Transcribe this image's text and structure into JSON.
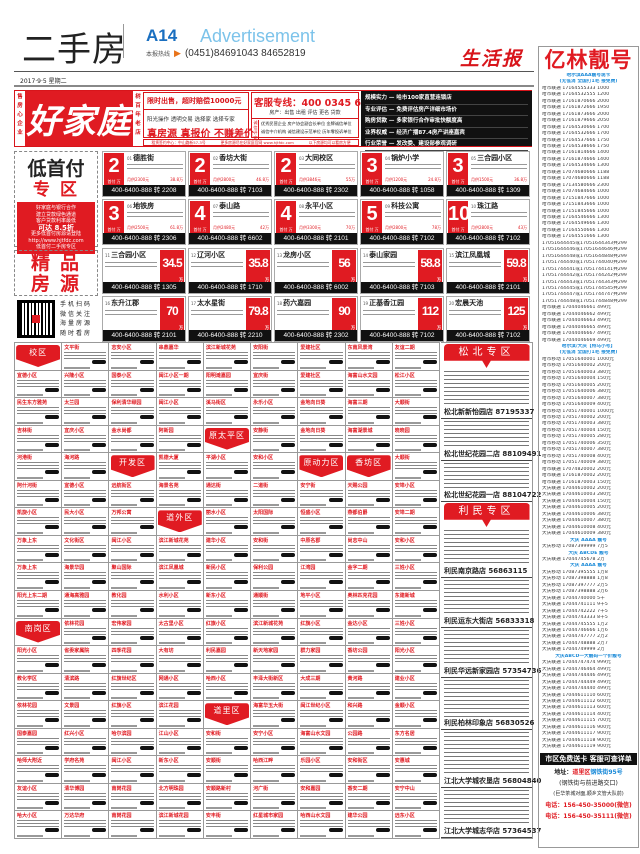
{
  "header": {
    "section_title": "二手房",
    "page_number": "A14",
    "page_label": "Advertisement",
    "hotline_label": "本报热线",
    "hotline": "(0451)84691043  84652819",
    "newspaper_logo": "生活报",
    "date": "2017·9·5  星期二"
  },
  "ad": {
    "left_vertical": "售房心企业",
    "brand": "好家庭",
    "right_vertical": "树百年老店",
    "promise": "限时出售，超时赔偿10000元",
    "principles": "阳光操作  透明交易  选择家  选择专家",
    "slogan": "真房源 真报价 不赚差价",
    "service_line": "客服专线：400 0345 688",
    "services": "房产：出售  出租  评估  更名  贷款",
    "honor_label": "诚信评定",
    "honors1": "优秀民营企业  房产协会副会长单位  金牌诚信单位",
    "honors2": "诚信中介机构  诚信建设示范单位  历年零投诉单位",
    "features": [
      "规模实力 — 哈市100家直营连锁店",
      "专业评估 — 免费评估房产详细市场价",
      "购房贷款 — 多家银行合作审批快额度高",
      "业界权威 — 经济广播87.4房产讲座嘉宾",
      "行业荣誉 — 发改委、建设部参观调研"
    ],
    "strip": [
      "租赁签约中心：中山路新57-3号",
      "更多房源尽在好家庭官网 www.hjtfdc.com",
      "以下房源均可以看房方便"
    ]
  },
  "low_pay": {
    "title": "低首付",
    "subtitle": "专区",
    "lines": [
      "好家庭与银行合作",
      "建立贷款绿色通道",
      "客户贷款利率最低"
    ],
    "discount": "可达 8.5折",
    "more": [
      "更多低首付房源请登陆",
      "http://www.hjtfdc.com",
      "低首付二手房专区"
    ],
    "down_label": "首付",
    "unit": "万",
    "cards": [
      {
        "no": "01",
        "name": "德胜街",
        "down": "2",
        "monthly": "月供2300元",
        "total": "38.8万",
        "tel": "400-6400-888 转 2208"
      },
      {
        "no": "02",
        "name": "香坊大街",
        "down": "2",
        "monthly": "月供2800元",
        "total": "46.8万",
        "tel": "400-6400-888 转 7103"
      },
      {
        "no": "03",
        "name": "大同校区",
        "down": "2",
        "monthly": "月供3846元",
        "total": "55万",
        "tel": "400-6400-888 转 2302"
      },
      {
        "no": "04",
        "name": "锅炉小学",
        "down": "3",
        "monthly": "月供1200元",
        "total": "24.8万",
        "tel": "400-6400-888 转 1058"
      },
      {
        "no": "05",
        "name": "三合园小区",
        "down": "3",
        "monthly": "月供1500元",
        "total": "36.8万",
        "tel": "400-6400-888 转 1309"
      },
      {
        "no": "06",
        "name": "地铁房",
        "down": "3",
        "monthly": "月供2500元",
        "total": "61.8万",
        "tel": "400-6400-888 转 2306"
      },
      {
        "no": "07",
        "name": "泰山路",
        "down": "4",
        "monthly": "月供2480元",
        "total": "42万",
        "tel": "400-6400-888 转 6602"
      },
      {
        "no": "08",
        "name": "永平小区",
        "down": "4",
        "monthly": "月供3300元",
        "total": "70万",
        "tel": "400-6400-888 转 2101"
      },
      {
        "no": "09",
        "name": "科技公寓",
        "down": "5",
        "monthly": "月供2800元",
        "total": "78万",
        "tel": "400-6400-888 转 7102"
      },
      {
        "no": "10",
        "name": "珠江路",
        "down": "10",
        "monthly": "月供2800元",
        "total": "43万",
        "tel": "400-6400-888 转 7102"
      }
    ]
  },
  "premium": {
    "title": "精品房源",
    "qr_text": "手机扫码 微信关注 海量房源 随时看房",
    "unit": "万",
    "cards": [
      {
        "no": "11",
        "name": "三合园小区",
        "price": "34.5",
        "tel": "400-6400-888 转 1305"
      },
      {
        "no": "12",
        "name": "辽河小区",
        "price": "35.8",
        "tel": "400-6400-888 转 1710"
      },
      {
        "no": "13",
        "name": "龙房小区",
        "price": "56",
        "tel": "400-6400-888 转 6002"
      },
      {
        "no": "14",
        "name": "泰山家园",
        "price": "58.8",
        "tel": "400-6400-888 转 7103"
      },
      {
        "no": "15",
        "name": "滨江凤凰城",
        "price": "59.8",
        "tel": "400-6400-888 转 2101"
      },
      {
        "no": "16",
        "name": "东升江郡",
        "price": "70",
        "tel": "400-6400-888 转 2101"
      },
      {
        "no": "17",
        "name": "太水星街",
        "price": "79.8",
        "tel": "400-6400-888 转 2210"
      },
      {
        "no": "18",
        "name": "药六嘉园",
        "price": "90",
        "tel": "400-6400-888 转 2302"
      },
      {
        "no": "19",
        "name": "正基香江园",
        "price": "112",
        "tel": "400-6400-888 转 7102"
      },
      {
        "no": "20",
        "name": "宏晨天池",
        "price": "125",
        "tel": "400-6400-888 转 7102"
      }
    ]
  },
  "districts": [
    "校区",
    "原太平区",
    "开发区",
    "原动力区",
    "香坊区",
    "道外区",
    "南岗区",
    "道里区"
  ],
  "listings": [
    "文平街",
    "志安小区",
    "串鼎嘉华",
    "滨江新城花苑",
    "安阳街",
    "爱建社区",
    "东南风景湾",
    "友谊二期",
    "宣德小区",
    "兴隆小区",
    "国泰小区",
    "闽江小区一期",
    "阳明滩嘉园",
    "宣庆街",
    "爱建社区",
    "海富山水文园",
    "松江小区",
    "民生东方雅苑",
    "太兰园",
    "保利清华颐园",
    "闽江小区",
    "溪马街区",
    "永乐小区",
    "金地向日葵",
    "海富三期",
    "大顺街",
    "吉林街",
    "宜庆小区",
    "金水尚都",
    "阿新园",
    "安静街",
    "金地向日葵",
    "海富湖景城",
    "晓晓园",
    "河港街",
    "海河路",
    "凯德大厦",
    "平湖小区",
    "安和小区",
    "大顺街",
    "阿什河街",
    "宣德小区",
    "远航街区",
    "海景名苑",
    "通达街",
    "二道街",
    "安宁街",
    "天赐公园",
    "安埠小区",
    "凯旋小区",
    "民大小区",
    "万邦公寓",
    "丽水小区",
    "太阳国际",
    "恒盛小区",
    "燕都伯爵",
    "安埠二期",
    "万象上东",
    "文化街区",
    "闽江小区",
    "滨江新城花苑",
    "建华小区",
    "安和街",
    "中原名郡",
    "尚志中山",
    "安和小区",
    "万象上东",
    "海景华园",
    "聚山国际",
    "滨江凤凰城",
    "新民小区",
    "保利公园",
    "江湾园",
    "金字二期",
    "三姓小区",
    "阳光上东二期",
    "通海高雅园",
    "教化园",
    "水利小区",
    "新东小区",
    "通顺街",
    "地平小区",
    "奥林匹克花园",
    "东建新城",
    "依林花园",
    "宏伟家园",
    "太古里小区",
    "红旗小区",
    "滨江新城花苑",
    "红旗小区",
    "金达小区",
    "三姓小区",
    "阳光小区",
    "省委家属院",
    "四季花园",
    "大有坊",
    "利民嘉园",
    "新天地家园",
    "群力家园",
    "香坊公园",
    "阳光小区",
    "教化学区",
    "清滨路",
    "红旗世纪区",
    "网通小区",
    "哈西小区",
    "丰泽大街新区",
    "大成三期",
    "黄河路",
    "建业小区",
    "依林花园",
    "文景园",
    "红旗小区",
    "滨江花园",
    "海富华玉大街",
    "闽江世纪小区",
    "和兴路",
    "金顺小区",
    "国泰嘉园",
    "红兴小区",
    "哈尔滨园",
    "江山小区",
    "安和街",
    "安宁小区",
    "海富山水文园",
    "公园路",
    "东方名居",
    "哈师大附近",
    "学府名苑",
    "闽江小区",
    "新东小区",
    "安顺街",
    "哈西江畔",
    "乐园小区",
    "安和街区",
    "安惠城",
    "友谊小区",
    "清华博园",
    "南岗花园",
    "北方明珠园",
    "安顺路新村",
    "河广街",
    "安和嘉园",
    "香安二期",
    "安宁中山",
    "哈大小区",
    "万达华府",
    "南岗花园",
    "滨江新城花园",
    "安丰街",
    "红星城市家园",
    "哈西山水文园",
    "建华公园",
    "远东小区"
  ],
  "right_panel": {
    "zones": [
      {
        "title": "松北专区",
        "stores": [
          "松北新新怡园店 87195337",
          "松北世纪花园二店 88109491",
          "松北世纪花园一店 88104722"
        ]
      },
      {
        "title": "利民专区",
        "stores": [
          "利民南京路店 56863115",
          "利民运东大街店 56833318",
          "利民华远新家园店 57354736",
          "利民柏林印象店 56830526",
          "江北大学城农垦店 56804840",
          "江北大学城志华店 57364537"
        ]
      }
    ]
  },
  "numbers": {
    "title": "亿林靓号",
    "lines": [
      [
        "b",
        "哈尔滨AAA靓号现卡"
      ],
      [
        "b",
        "(无低消 全国打1毛 接免费)"
      ],
      [
        "",
        "哈市联通 17164555333 1000"
      ],
      [
        "",
        "哈市联通 17164532555 1200"
      ],
      [
        "",
        "哈市联通 17161870666 2000"
      ],
      [
        "",
        "哈市联通 17161872666 1950"
      ],
      [
        "",
        "哈市联通 17161873666 2000"
      ],
      [
        "",
        "哈市联通 17161879666 2050"
      ],
      [
        "",
        "哈市联通 17164530666 1700"
      ],
      [
        "",
        "哈市联通 17164532666 1700"
      ],
      [
        "",
        "哈市联通 17164537666 1750"
      ],
      [
        "",
        "哈市联通 17164538666 1750"
      ],
      [
        "",
        "哈市联通 17161814666 1400"
      ],
      [
        "",
        "哈市联通 17161874666 1400"
      ],
      [
        "",
        "哈市联通 17164534666 1300"
      ],
      [
        "",
        "哈市联通 17074680666 1188"
      ],
      [
        "",
        "哈市联通 17074680666 1188"
      ],
      [
        "",
        "哈市联通 17134580666 2300"
      ],
      [
        "",
        "哈市联通 17074684666 1000"
      ],
      [
        "",
        "哈市联通 17151847666 1000"
      ],
      [
        "",
        "哈市联通 17151843666 1000"
      ],
      [
        "",
        "哈市联通 17151845666 1000"
      ],
      [
        "",
        "哈市联通 17164546666 1300"
      ],
      [
        "",
        "哈市联通 17164549666 1300"
      ],
      [
        "",
        "哈市联通 17164550666 1300"
      ],
      [
        "",
        "哈市联通 17164551666 1300"
      ],
      [
        "",
        "17051644445或17051644343共299"
      ],
      [
        "",
        "17051644446或17051644646共299"
      ],
      [
        "",
        "17051644448或17051644848共299"
      ],
      [
        "",
        "17051744440或17051744040共299"
      ],
      [
        "",
        "17051744441或17051744141共299"
      ],
      [
        "",
        "17051744442或17051744242共299"
      ],
      [
        "",
        "17051744443或17051744343共299"
      ],
      [
        "",
        "17051744445或17051744545共299"
      ],
      [
        "",
        "17051744447或17051744747共299"
      ],
      [
        "",
        "17051744448或17051744848共299"
      ],
      [
        "",
        "哈市联通 17044046661 499元"
      ],
      [
        "",
        "哈市联通 17044046662 499元"
      ],
      [
        "",
        "哈市联通 17044046663 499元"
      ],
      [
        "",
        "哈市联通 17044046665 499元"
      ],
      [
        "",
        "哈市联通 17044046667 499元"
      ],
      [
        "",
        "哈市联通 17044046669 499元"
      ],
      [
        "b",
        "哈尔滨/大庆【特马小号】"
      ],
      [
        "b",
        "(无低消 全国打1毛 接免费)"
      ],
      [
        "",
        "哈市移动 17051640001 1000元"
      ],
      [
        "",
        "哈市移动 17051640002 200元"
      ],
      [
        "",
        "哈市移动 17051640003 380元"
      ],
      [
        "",
        "哈市移动 17051640004 150元"
      ],
      [
        "",
        "哈市移动 17051640005 200元"
      ],
      [
        "",
        "哈市移动 17051640006 380元"
      ],
      [
        "",
        "哈市移动 17051640007 380元"
      ],
      [
        "",
        "哈市移动 17051640009 400元"
      ],
      [
        "",
        "哈市移动 17051740001 1000元"
      ],
      [
        "",
        "哈市移动 17051740002 200元"
      ],
      [
        "",
        "哈市移动 17051740003 380元"
      ],
      [
        "",
        "哈市移动 17051740004 150元"
      ],
      [
        "",
        "哈市移动 17051740005 280元"
      ],
      [
        "",
        "哈市移动 17051740006 350元"
      ],
      [
        "",
        "哈市移动 17051740007 380元"
      ],
      [
        "",
        "哈市移动 17051740008 400元"
      ],
      [
        "",
        "哈市移动 17051740009 380元"
      ],
      [
        "",
        "哈市联通 17074820002 200元"
      ],
      [
        "",
        "哈市联通 17161870002 200元"
      ],
      [
        "",
        "哈市联通 17161870003 150元"
      ],
      [
        "",
        "大庆联通 17044610002 200元"
      ],
      [
        "",
        "大庆联通 17044610003 280元"
      ],
      [
        "",
        "大庆联通 17044610004 150元"
      ],
      [
        "",
        "大庆联通 17044610005 200元"
      ],
      [
        "",
        "大庆联通 17044610006 380元"
      ],
      [
        "",
        "大庆联通 17044610007 380元"
      ],
      [
        "",
        "大庆联通 17044610008 400元"
      ],
      [
        "",
        "大庆联通 17044610009 380元"
      ],
      [
        "b",
        "大庆 AAAA 靓号"
      ],
      [
        "",
        "大庆移动 17087399999 7万5"
      ],
      [
        "b",
        "大庆 ABCDE 靓号"
      ],
      [
        "",
        "大庆联通 17044745678 2万"
      ],
      [
        "b",
        "大庆 AAAA 靓号"
      ],
      [
        "",
        "大庆移动 17087395555 1万8"
      ],
      [
        "",
        "大庆移动 17087398888 1万8"
      ],
      [
        "",
        "大庆移动 17087397777 2万5"
      ],
      [
        "",
        "大庆移动 17087398888 2万6"
      ],
      [
        "",
        "大庆联通 17044740000 5千"
      ],
      [
        "",
        "大庆联通 17044741111 9千5"
      ],
      [
        "",
        "大庆联通 17044742222 7千5"
      ],
      [
        "",
        "大庆联通 17044743333 8千5"
      ],
      [
        "",
        "大庆联通 17044745555 1万2"
      ],
      [
        "",
        "大庆联通 17044746666 1万6"
      ],
      [
        "",
        "大庆联通 17044747777 2万2"
      ],
      [
        "",
        "大庆联通 17044748888 2万7"
      ],
      [
        "",
        "大庆联通 17044749999 2万"
      ],
      [
        "b",
        "大庆ABCD一大靓码一个价靓号"
      ],
      [
        "",
        "大庆联通 17044747474 999元"
      ],
      [
        "",
        "大庆联通 17044746464 499元"
      ],
      [
        "",
        "大庆联通 17044744446 499元"
      ],
      [
        "",
        "大庆联通 17044744449 499元"
      ],
      [
        "",
        "大庆联通 17044744440 499元"
      ],
      [
        "",
        "大庆联通 17044611110 600元"
      ],
      [
        "",
        "大庆联通 17044611112 600元"
      ],
      [
        "",
        "大庆联通 17044611113 600元"
      ],
      [
        "",
        "大庆联通 17044611114 400元"
      ],
      [
        "",
        "大庆联通 17044611115 700元"
      ],
      [
        "",
        "大庆联通 17044611116 900元"
      ],
      [
        "",
        "大庆联通 17044611117 900元"
      ],
      [
        "",
        "大庆联通 17044611118 900元"
      ],
      [
        "",
        "大庆联通 17044611119 900元"
      ]
    ],
    "banner": "市区免费送卡 客服可查详单",
    "address_label": "地址：",
    "address_district": "道里区",
    "address_street": "钢铁街95号",
    "address_note1": "(钢铁街与前进路交口)",
    "address_note2": "(巨华茶城对面,顺乡文管大队前)",
    "phone1": "电话：156-450-35000(微信)",
    "phone2": "电话：156-450-35111(微信)"
  },
  "colors": {
    "brand_red": "#e01b22",
    "accent_blue": "#1a8ad8"
  }
}
